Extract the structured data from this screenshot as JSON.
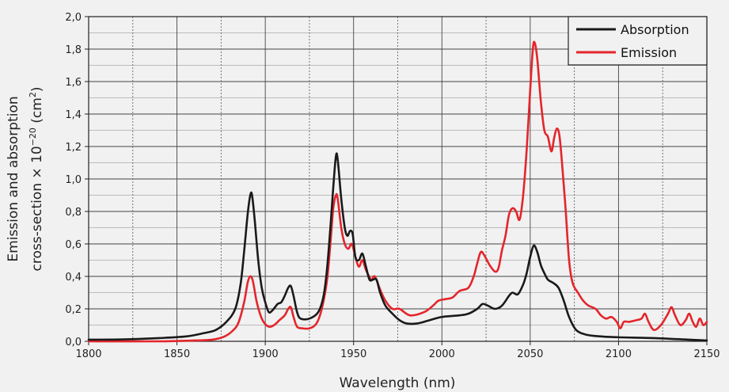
{
  "chart_data": {
    "type": "line",
    "title": "",
    "xlabel": "Wavelength (nm)",
    "ylabel_line1": "Emission and absorption",
    "ylabel_line2_prefix": "cross-section × 10",
    "ylabel_exponent": "−20",
    "ylabel_unit_open": " (cm",
    "ylabel_unit_exponent": "2",
    "ylabel_unit_close": ")",
    "xlim": [
      1800,
      2150
    ],
    "ylim": [
      0,
      2.0
    ],
    "x_ticks": [
      1800,
      1850,
      1900,
      1950,
      2000,
      2050,
      2100,
      2150
    ],
    "x_tick_labels": [
      "1800",
      "1850",
      "1900",
      "1950",
      "2000",
      "2050",
      "2100",
      "2150"
    ],
    "x_minor_ticks": [
      1825,
      1875,
      1925,
      1975,
      2025,
      2075,
      2125
    ],
    "y_ticks": [
      0,
      0.2,
      0.4,
      0.6,
      0.8,
      1.0,
      1.2,
      1.4,
      1.6,
      1.8,
      2.0
    ],
    "y_tick_labels": [
      "0,0",
      "0,2",
      "0,4",
      "0,6",
      "0,8",
      "1,0",
      "1,2",
      "1,4",
      "1,6",
      "1,8",
      "2,0"
    ],
    "y_minor_ticks": [
      0.1,
      0.3,
      0.5,
      0.7,
      0.9,
      1.1,
      1.3,
      1.5,
      1.7,
      1.9
    ],
    "grid": true,
    "legend_position": "top-right",
    "series": [
      {
        "name": "Absorption",
        "color": "#1a1a1a",
        "points": [
          [
            1800,
            0.01
          ],
          [
            1820,
            0.012
          ],
          [
            1840,
            0.02
          ],
          [
            1855,
            0.03
          ],
          [
            1865,
            0.05
          ],
          [
            1872,
            0.07
          ],
          [
            1878,
            0.12
          ],
          [
            1883,
            0.2
          ],
          [
            1886,
            0.35
          ],
          [
            1888,
            0.55
          ],
          [
            1890,
            0.78
          ],
          [
            1891.5,
            0.9
          ],
          [
            1892.5,
            0.9
          ],
          [
            1894,
            0.75
          ],
          [
            1896,
            0.5
          ],
          [
            1898,
            0.33
          ],
          [
            1900,
            0.24
          ],
          [
            1902,
            0.18
          ],
          [
            1904,
            0.19
          ],
          [
            1907,
            0.23
          ],
          [
            1909,
            0.24
          ],
          [
            1911,
            0.28
          ],
          [
            1913,
            0.33
          ],
          [
            1914.5,
            0.34
          ],
          [
            1916,
            0.28
          ],
          [
            1918,
            0.18
          ],
          [
            1920,
            0.14
          ],
          [
            1925,
            0.14
          ],
          [
            1930,
            0.18
          ],
          [
            1933,
            0.28
          ],
          [
            1935,
            0.45
          ],
          [
            1937,
            0.72
          ],
          [
            1938.5,
            0.95
          ],
          [
            1940,
            1.14
          ],
          [
            1941,
            1.12
          ],
          [
            1943,
            0.88
          ],
          [
            1945,
            0.7
          ],
          [
            1946.5,
            0.65
          ],
          [
            1948,
            0.68
          ],
          [
            1949.5,
            0.66
          ],
          [
            1951,
            0.52
          ],
          [
            1953,
            0.5
          ],
          [
            1955,
            0.54
          ],
          [
            1957,
            0.46
          ],
          [
            1959,
            0.38
          ],
          [
            1961,
            0.38
          ],
          [
            1963,
            0.38
          ],
          [
            1965,
            0.3
          ],
          [
            1968,
            0.22
          ],
          [
            1972,
            0.17
          ],
          [
            1976,
            0.13
          ],
          [
            1980,
            0.11
          ],
          [
            1986,
            0.11
          ],
          [
            1993,
            0.13
          ],
          [
            2000,
            0.15
          ],
          [
            2010,
            0.16
          ],
          [
            2015,
            0.17
          ],
          [
            2020,
            0.2
          ],
          [
            2023,
            0.23
          ],
          [
            2026,
            0.22
          ],
          [
            2030,
            0.2
          ],
          [
            2034,
            0.22
          ],
          [
            2038,
            0.28
          ],
          [
            2040,
            0.3
          ],
          [
            2043,
            0.29
          ],
          [
            2046,
            0.35
          ],
          [
            2048,
            0.42
          ],
          [
            2050,
            0.52
          ],
          [
            2052,
            0.59
          ],
          [
            2054,
            0.55
          ],
          [
            2056,
            0.47
          ],
          [
            2058,
            0.42
          ],
          [
            2060,
            0.38
          ],
          [
            2063,
            0.36
          ],
          [
            2066,
            0.33
          ],
          [
            2069,
            0.25
          ],
          [
            2072,
            0.15
          ],
          [
            2076,
            0.07
          ],
          [
            2082,
            0.04
          ],
          [
            2090,
            0.03
          ],
          [
            2100,
            0.025
          ],
          [
            2120,
            0.02
          ],
          [
            2140,
            0.01
          ],
          [
            2150,
            0.005
          ]
        ]
      },
      {
        "name": "Emission",
        "color": "#e4252b",
        "points": [
          [
            1800,
            0.0
          ],
          [
            1840,
            0.0
          ],
          [
            1860,
            0.005
          ],
          [
            1870,
            0.01
          ],
          [
            1877,
            0.03
          ],
          [
            1882,
            0.07
          ],
          [
            1885,
            0.12
          ],
          [
            1888,
            0.24
          ],
          [
            1890,
            0.36
          ],
          [
            1891.5,
            0.4
          ],
          [
            1893,
            0.37
          ],
          [
            1895,
            0.25
          ],
          [
            1897,
            0.17
          ],
          [
            1899,
            0.12
          ],
          [
            1902,
            0.09
          ],
          [
            1905,
            0.1
          ],
          [
            1908,
            0.13
          ],
          [
            1911,
            0.16
          ],
          [
            1913,
            0.2
          ],
          [
            1914.5,
            0.21
          ],
          [
            1916,
            0.15
          ],
          [
            1918,
            0.09
          ],
          [
            1921,
            0.08
          ],
          [
            1925,
            0.08
          ],
          [
            1929,
            0.11
          ],
          [
            1932,
            0.2
          ],
          [
            1935,
            0.38
          ],
          [
            1937,
            0.62
          ],
          [
            1938.5,
            0.82
          ],
          [
            1940,
            0.9
          ],
          [
            1941,
            0.88
          ],
          [
            1943,
            0.7
          ],
          [
            1945,
            0.6
          ],
          [
            1947,
            0.57
          ],
          [
            1949,
            0.6
          ],
          [
            1951,
            0.52
          ],
          [
            1953,
            0.46
          ],
          [
            1955,
            0.5
          ],
          [
            1957,
            0.44
          ],
          [
            1960,
            0.38
          ],
          [
            1962,
            0.4
          ],
          [
            1965,
            0.32
          ],
          [
            1968,
            0.25
          ],
          [
            1972,
            0.2
          ],
          [
            1976,
            0.2
          ],
          [
            1982,
            0.16
          ],
          [
            1990,
            0.18
          ],
          [
            1995,
            0.22
          ],
          [
            1998,
            0.25
          ],
          [
            2002,
            0.26
          ],
          [
            2006,
            0.27
          ],
          [
            2010,
            0.31
          ],
          [
            2015,
            0.33
          ],
          [
            2018,
            0.4
          ],
          [
            2020,
            0.48
          ],
          [
            2022,
            0.55
          ],
          [
            2024,
            0.53
          ],
          [
            2027,
            0.47
          ],
          [
            2030,
            0.43
          ],
          [
            2032,
            0.45
          ],
          [
            2034,
            0.56
          ],
          [
            2036,
            0.65
          ],
          [
            2038,
            0.78
          ],
          [
            2040,
            0.82
          ],
          [
            2042,
            0.8
          ],
          [
            2044,
            0.75
          ],
          [
            2046,
            0.9
          ],
          [
            2048,
            1.18
          ],
          [
            2050,
            1.55
          ],
          [
            2051.5,
            1.8
          ],
          [
            2052.5,
            1.84
          ],
          [
            2054,
            1.74
          ],
          [
            2056,
            1.48
          ],
          [
            2058,
            1.3
          ],
          [
            2060,
            1.26
          ],
          [
            2062,
            1.17
          ],
          [
            2063.5,
            1.25
          ],
          [
            2065,
            1.31
          ],
          [
            2066.5,
            1.27
          ],
          [
            2068,
            1.1
          ],
          [
            2070,
            0.82
          ],
          [
            2072,
            0.5
          ],
          [
            2074,
            0.36
          ],
          [
            2077,
            0.3
          ],
          [
            2080,
            0.25
          ],
          [
            2083,
            0.22
          ],
          [
            2087,
            0.2
          ],
          [
            2090,
            0.16
          ],
          [
            2093,
            0.14
          ],
          [
            2096,
            0.15
          ],
          [
            2099,
            0.12
          ],
          [
            2101,
            0.08
          ],
          [
            2103,
            0.12
          ],
          [
            2106,
            0.12
          ],
          [
            2110,
            0.13
          ],
          [
            2113,
            0.14
          ],
          [
            2115,
            0.17
          ],
          [
            2117,
            0.12
          ],
          [
            2120,
            0.07
          ],
          [
            2124,
            0.1
          ],
          [
            2128,
            0.17
          ],
          [
            2130,
            0.21
          ],
          [
            2132,
            0.16
          ],
          [
            2135,
            0.1
          ],
          [
            2138,
            0.13
          ],
          [
            2140,
            0.17
          ],
          [
            2142,
            0.12
          ],
          [
            2144,
            0.09
          ],
          [
            2146,
            0.14
          ],
          [
            2148,
            0.1
          ],
          [
            2150,
            0.12
          ]
        ]
      }
    ]
  }
}
